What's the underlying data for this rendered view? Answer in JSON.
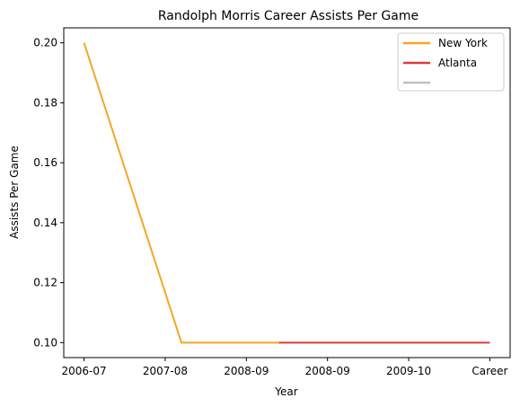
{
  "chart_data": {
    "type": "line",
    "title": "Randolph Morris Career Assists Per Game",
    "xlabel": "Year",
    "ylabel": "Assists Per Game",
    "x_tick_labels": [
      "2006-07",
      "2007-08",
      "2008-09",
      "2008-09",
      "2009-10",
      "Career"
    ],
    "y_ticks": [
      0.1,
      0.12,
      0.14,
      0.16,
      0.18,
      0.2
    ],
    "ylim": [
      0.095,
      0.205
    ],
    "grid": false,
    "legend_position": "top-right",
    "series": [
      {
        "name": "New York",
        "color": "#f5a623",
        "points": [
          [
            0,
            0.2
          ],
          [
            1.2,
            0.1
          ],
          [
            2.4,
            0.1
          ]
        ]
      },
      {
        "name": "Atlanta",
        "color": "#e0393e",
        "points": [
          [
            2.4,
            0.1
          ],
          [
            5.0,
            0.1
          ]
        ]
      },
      {
        "name": "",
        "color": "#c0c0c0",
        "points": []
      }
    ]
  }
}
